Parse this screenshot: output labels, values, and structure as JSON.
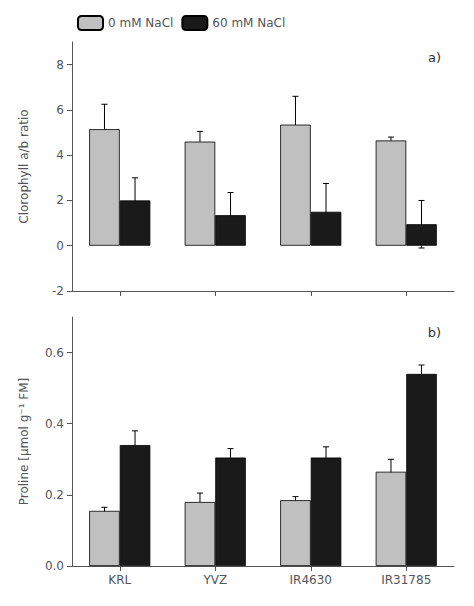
{
  "chart_data": [
    {
      "type": "bar",
      "title": "a)",
      "ylabel": "Clorophyll a/b ratio",
      "categories": [
        "KRL",
        "YVZ",
        "IR4630",
        "IR31785"
      ],
      "series": [
        {
          "name": "0 mM NaCl",
          "color": "#c0c0c0",
          "values": [
            5.15,
            4.6,
            5.35,
            4.65
          ],
          "errors": [
            1.1,
            0.45,
            1.25,
            0.15
          ]
        },
        {
          "name": "60 mM NaCl",
          "color": "#1a1a1a",
          "values": [
            2.0,
            1.35,
            1.5,
            0.95
          ],
          "errors": [
            1.0,
            1.0,
            1.25,
            1.05
          ]
        }
      ],
      "ylim": [
        -2,
        9
      ],
      "yticks": [
        -2,
        0,
        2,
        4,
        6,
        8
      ],
      "grid": false,
      "legend": "upper left",
      "tick_labels": "y"
    },
    {
      "type": "bar",
      "title": "b)",
      "ylabel": "Proline [μmol g⁻¹ FM]",
      "categories": [
        "KRL",
        "YVZ",
        "IR4630",
        "IR31785"
      ],
      "series": [
        {
          "name": "0 mM NaCl",
          "color": "#c0c0c0",
          "values": [
            0.155,
            0.18,
            0.185,
            0.265
          ],
          "errors": [
            0.01,
            0.025,
            0.01,
            0.035
          ]
        },
        {
          "name": "60 mM NaCl",
          "color": "#1a1a1a",
          "values": [
            0.34,
            0.305,
            0.305,
            0.54
          ],
          "errors": [
            0.04,
            0.025,
            0.03,
            0.025
          ]
        }
      ],
      "ylim": [
        0,
        0.7
      ],
      "yticks": [
        {
          "value": 0,
          "label": "0.0"
        },
        0.2,
        0.4,
        0.6
      ],
      "grid": false
    }
  ]
}
